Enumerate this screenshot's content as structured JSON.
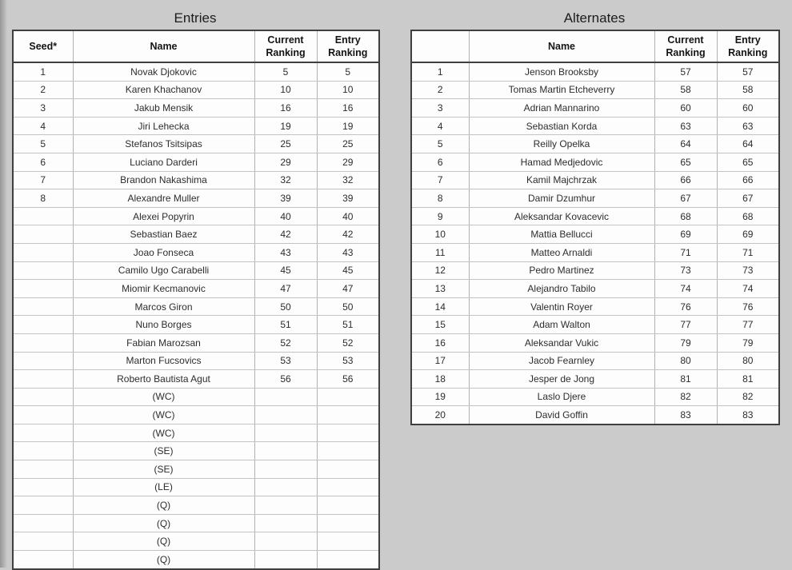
{
  "page": {
    "background_color": "#cbcbcb",
    "table_border_color": "#3f3f3f",
    "grid_line_color": "#b2b2b2"
  },
  "tables": [
    {
      "id": "entries",
      "title": "Entries",
      "columns": [
        "Seed*",
        "Name",
        "Current Ranking",
        "Entry Ranking"
      ],
      "rows": [
        [
          "1",
          "Novak Djokovic",
          "5",
          "5"
        ],
        [
          "2",
          "Karen Khachanov",
          "10",
          "10"
        ],
        [
          "3",
          "Jakub Mensik",
          "16",
          "16"
        ],
        [
          "4",
          "Jiri Lehecka",
          "19",
          "19"
        ],
        [
          "5",
          "Stefanos Tsitsipas",
          "25",
          "25"
        ],
        [
          "6",
          "Luciano Darderi",
          "29",
          "29"
        ],
        [
          "7",
          "Brandon Nakashima",
          "32",
          "32"
        ],
        [
          "8",
          "Alexandre Muller",
          "39",
          "39"
        ],
        [
          "",
          "Alexei Popyrin",
          "40",
          "40"
        ],
        [
          "",
          "Sebastian Baez",
          "42",
          "42"
        ],
        [
          "",
          "Joao Fonseca",
          "43",
          "43"
        ],
        [
          "",
          "Camilo Ugo Carabelli",
          "45",
          "45"
        ],
        [
          "",
          "Miomir Kecmanovic",
          "47",
          "47"
        ],
        [
          "",
          "Marcos Giron",
          "50",
          "50"
        ],
        [
          "",
          "Nuno Borges",
          "51",
          "51"
        ],
        [
          "",
          "Fabian Marozsan",
          "52",
          "52"
        ],
        [
          "",
          "Marton Fucsovics",
          "53",
          "53"
        ],
        [
          "",
          "Roberto Bautista Agut",
          "56",
          "56"
        ],
        [
          "",
          "(WC)",
          "",
          ""
        ],
        [
          "",
          "(WC)",
          "",
          ""
        ],
        [
          "",
          "(WC)",
          "",
          ""
        ],
        [
          "",
          "(SE)",
          "",
          ""
        ],
        [
          "",
          "(SE)",
          "",
          ""
        ],
        [
          "",
          "(LE)",
          "",
          ""
        ],
        [
          "",
          "(Q)",
          "",
          ""
        ],
        [
          "",
          "(Q)",
          "",
          ""
        ],
        [
          "",
          "(Q)",
          "",
          ""
        ],
        [
          "",
          "(Q)",
          "",
          ""
        ]
      ]
    },
    {
      "id": "alternates",
      "title": "Alternates",
      "columns": [
        "",
        "Name",
        "Current Ranking",
        "Entry Ranking"
      ],
      "rows": [
        [
          "1",
          "Jenson Brooksby",
          "57",
          "57"
        ],
        [
          "2",
          "Tomas Martin Etcheverry",
          "58",
          "58"
        ],
        [
          "3",
          "Adrian Mannarino",
          "60",
          "60"
        ],
        [
          "4",
          "Sebastian Korda",
          "63",
          "63"
        ],
        [
          "5",
          "Reilly Opelka",
          "64",
          "64"
        ],
        [
          "6",
          "Hamad Medjedovic",
          "65",
          "65"
        ],
        [
          "7",
          "Kamil Majchrzak",
          "66",
          "66"
        ],
        [
          "8",
          "Damir Dzumhur",
          "67",
          "67"
        ],
        [
          "9",
          "Aleksandar Kovacevic",
          "68",
          "68"
        ],
        [
          "10",
          "Mattia Bellucci",
          "69",
          "69"
        ],
        [
          "11",
          "Matteo Arnaldi",
          "71",
          "71"
        ],
        [
          "12",
          "Pedro Martinez",
          "73",
          "73"
        ],
        [
          "13",
          "Alejandro Tabilo",
          "74",
          "74"
        ],
        [
          "14",
          "Valentin Royer",
          "76",
          "76"
        ],
        [
          "15",
          "Adam Walton",
          "77",
          "77"
        ],
        [
          "16",
          "Aleksandar Vukic",
          "79",
          "79"
        ],
        [
          "17",
          "Jacob Fearnley",
          "80",
          "80"
        ],
        [
          "18",
          "Jesper de Jong",
          "81",
          "81"
        ],
        [
          "19",
          "Laslo Djere",
          "82",
          "82"
        ],
        [
          "20",
          "David Goffin",
          "83",
          "83"
        ]
      ]
    }
  ]
}
